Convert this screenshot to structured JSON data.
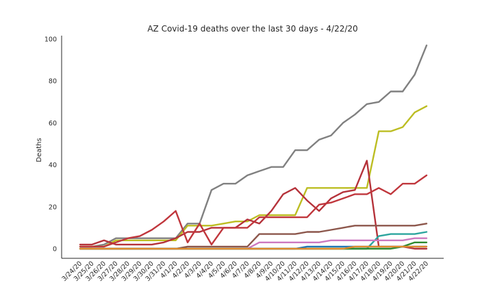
{
  "chart_data": {
    "type": "line",
    "title": "AZ Covid-19 deaths over the last 30 days - 4/22/20",
    "xlabel": "",
    "ylabel": "Deaths",
    "ylim": [
      -3,
      101
    ],
    "yticks": [
      0,
      20,
      40,
      60,
      80,
      100
    ],
    "grid": false,
    "categories": [
      "3/24/20",
      "3/25/20",
      "3/26/20",
      "3/27/20",
      "3/28/20",
      "3/29/20",
      "3/30/20",
      "3/31/20",
      "4/1/20",
      "4/2/20",
      "4/3/20",
      "4/4/20",
      "4/5/20",
      "4/6/20",
      "4/7/20",
      "4/8/20",
      "4/9/20",
      "4/10/20",
      "4/11/20",
      "4/12/20",
      "4/13/20",
      "4/14/20",
      "4/15/20",
      "4/16/20",
      "4/17/20",
      "4/18/20",
      "4/19/20",
      "4/20/20",
      "4/21/20",
      "4/22/20"
    ],
    "series": [
      {
        "color": "#808080",
        "values": [
          1,
          1,
          2,
          5,
          5,
          5,
          5,
          5,
          5,
          12,
          12,
          28,
          31,
          31,
          35,
          37,
          39,
          39,
          47,
          47,
          52,
          54,
          60,
          64,
          69,
          70,
          75,
          75,
          83,
          97
        ]
      },
      {
        "color": "#bcbd22",
        "values": [
          1,
          1,
          1,
          4,
          4,
          4,
          4,
          4,
          4,
          11,
          11,
          11,
          12,
          13,
          13,
          16,
          16,
          16,
          16,
          29,
          29,
          29,
          29,
          29,
          29,
          56,
          56,
          58,
          65,
          68
        ]
      },
      {
        "color": "#b5323a",
        "values": [
          2,
          2,
          4,
          2,
          2,
          2,
          2,
          3,
          5,
          8,
          8,
          10,
          10,
          10,
          14,
          12,
          18,
          26,
          29,
          23,
          18,
          24,
          27,
          28,
          42,
          1,
          1,
          1,
          0,
          0
        ]
      },
      {
        "color": "#c0363c",
        "values": [
          1,
          1,
          1,
          3,
          5,
          6,
          9,
          13,
          18,
          3,
          12,
          2,
          10,
          10,
          10,
          15,
          15,
          15,
          15,
          15,
          21,
          22,
          24,
          26,
          26,
          29,
          26,
          31,
          31,
          35
        ]
      },
      {
        "color": "#8c564b",
        "values": [
          0,
          0,
          0,
          0,
          0,
          0,
          0,
          0,
          0,
          1,
          1,
          1,
          1,
          1,
          1,
          7,
          7,
          7,
          7,
          8,
          8,
          9,
          10,
          11,
          11,
          11,
          11,
          11,
          11,
          12
        ]
      },
      {
        "color": "#2ca59e",
        "values": [
          0,
          0,
          0,
          0,
          0,
          0,
          0,
          0,
          0,
          0,
          0,
          0,
          0,
          0,
          0,
          0,
          0,
          0,
          0,
          0,
          0,
          0,
          0,
          0,
          0,
          6,
          7,
          7,
          7,
          8
        ]
      },
      {
        "color": "#cc79c0",
        "values": [
          0,
          0,
          0,
          0,
          0,
          0,
          0,
          0,
          0,
          0,
          0,
          0,
          0,
          0,
          0,
          3,
          3,
          3,
          3,
          3,
          3,
          4,
          4,
          4,
          4,
          4,
          4,
          4,
          5,
          5
        ]
      },
      {
        "color": "#2f8a2f",
        "values": [
          0,
          0,
          0,
          0,
          0,
          0,
          0,
          0,
          0,
          0,
          0,
          0,
          0,
          0,
          0,
          0,
          0,
          0,
          0,
          0,
          0,
          0,
          0,
          0,
          0,
          0,
          0,
          1,
          3,
          3
        ]
      },
      {
        "color": "#1f77b4",
        "values": [
          0,
          0,
          0,
          0,
          0,
          0,
          0,
          0,
          0,
          0,
          0,
          0,
          0,
          0,
          0,
          0,
          0,
          0,
          0,
          1,
          1,
          1,
          1,
          1,
          1,
          1,
          1,
          1,
          1,
          1
        ]
      },
      {
        "color": "#e08a2c",
        "values": [
          0,
          0,
          0,
          0,
          0,
          0,
          0,
          0,
          0,
          0,
          0,
          0,
          0,
          0,
          0,
          0,
          0,
          0,
          0,
          0,
          0,
          0,
          0,
          1,
          1,
          1,
          1,
          1,
          1,
          1
        ]
      }
    ]
  }
}
